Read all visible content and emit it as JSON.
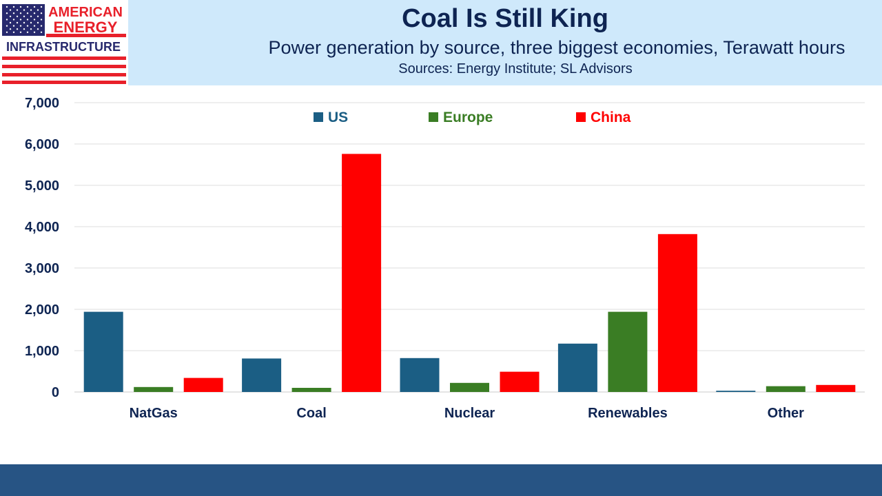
{
  "logo": {
    "line1": "AMERICAN",
    "line2": "ENERGY",
    "line3": "INFRASTRUCTURE",
    "colors": {
      "red": "#e8202a",
      "navy": "#27296d"
    }
  },
  "header": {
    "title": "Coal Is Still King",
    "subtitle": "Power generation by source, three biggest economies, Terawatt hours",
    "sources": "Sources: Energy Institute; SL Advisors"
  },
  "chart_data": {
    "type": "bar",
    "title": "Coal Is Still King",
    "subtitle": "Power generation by source, three biggest economies, Terawatt hours",
    "xlabel": "",
    "ylabel": "",
    "ylim": [
      0,
      7000
    ],
    "yticks": [
      0,
      1000,
      2000,
      3000,
      4000,
      5000,
      6000,
      7000
    ],
    "ytick_labels": [
      "0",
      "1,000",
      "2,000",
      "3,000",
      "4,000",
      "5,000",
      "6,000",
      "7,000"
    ],
    "grid": true,
    "legend_position": "top",
    "categories": [
      "NatGas",
      "Coal",
      "Nuclear",
      "Renewables",
      "Other"
    ],
    "series": [
      {
        "name": "US",
        "color": "#1b5e84",
        "values": [
          1940,
          810,
          820,
          1170,
          30
        ]
      },
      {
        "name": "Europe",
        "color": "#3a7d24",
        "values": [
          120,
          100,
          220,
          1940,
          140
        ]
      },
      {
        "name": "China",
        "color": "#ff0000",
        "values": [
          340,
          5760,
          490,
          3820,
          170
        ]
      }
    ]
  }
}
